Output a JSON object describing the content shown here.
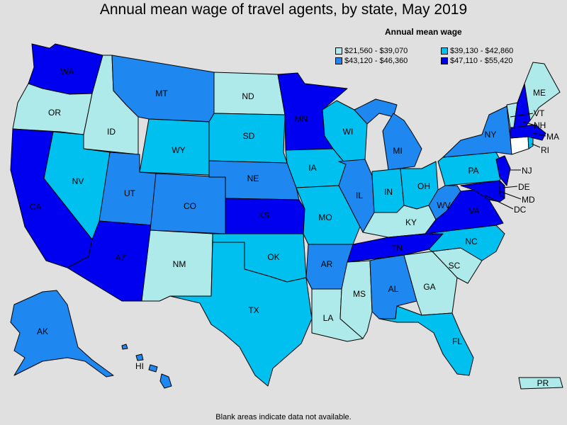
{
  "title": "Annual mean wage of travel agents, by state, May 2019",
  "legend": {
    "title": "Annual mean wage",
    "items": [
      {
        "label": "$21,560 - $39,070",
        "color": "#aeeaea"
      },
      {
        "label": "$39,130 - $42,860",
        "color": "#00c0f0"
      },
      {
        "label": "$43,120 - $46,360",
        "color": "#1e88f0"
      },
      {
        "label": "$47,110 - $55,420",
        "color": "#0000f0"
      }
    ]
  },
  "footnote": "Blank areas indicate data not available.",
  "states": {
    "WA": "WA",
    "OR": "OR",
    "CA": "CA",
    "ID": "ID",
    "NV": "NV",
    "MT": "MT",
    "WY": "WY",
    "UT": "UT",
    "AZ": "AZ",
    "CO": "CO",
    "NM": "NM",
    "ND": "ND",
    "SD": "SD",
    "NE": "NE",
    "KS": "KS",
    "OK": "OK",
    "TX": "TX",
    "MN": "MN",
    "IA": "IA",
    "MO": "MO",
    "AR": "AR",
    "LA": "LA",
    "WI": "WI",
    "IL": "IL",
    "MS": "MS",
    "MI": "MI",
    "IN": "IN",
    "KY": "KY",
    "TN": "TN",
    "AL": "AL",
    "OH": "OH",
    "GA": "GA",
    "FL": "FL",
    "SC": "SC",
    "NC": "NC",
    "VA": "VA",
    "WV": "WV",
    "PA": "PA",
    "NY": "NY",
    "ME": "ME",
    "VT": "VT",
    "NH": "NH",
    "MA": "MA",
    "RI": "RI",
    "CT": "",
    "NJ": "NJ",
    "DE": "DE",
    "MD": "MD",
    "DC": "DC",
    "AK": "AK",
    "HI": "HI",
    "PR": "PR"
  }
}
